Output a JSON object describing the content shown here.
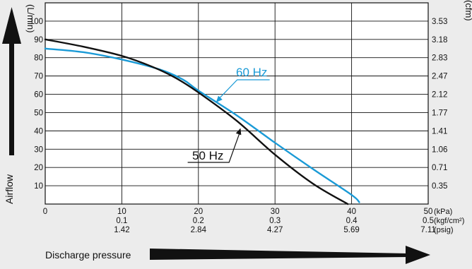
{
  "chart_data": {
    "type": "line",
    "y_axis_left": {
      "label": "Airflow",
      "unit": "(L/min)",
      "ticks": [
        10,
        20,
        30,
        40,
        50,
        60,
        70,
        80,
        90,
        100
      ],
      "ylim": [
        0,
        110
      ]
    },
    "y_axis_right": {
      "unit": "(cfm)",
      "ticks": [
        "0.35",
        "0.71",
        "1.06",
        "1.41",
        "1.77",
        "2.12",
        "2.47",
        "2.83",
        "3.18",
        "3.53"
      ]
    },
    "x_axis": {
      "label": "Discharge pressure",
      "xlim": [
        0,
        50
      ],
      "rows": [
        {
          "unit": "(kPa)",
          "ticks": [
            "0",
            "10",
            "20",
            "30",
            "40",
            "50"
          ]
        },
        {
          "unit": "(kgf/cm²)",
          "ticks": [
            "",
            "0.1",
            "0.2",
            "0.3",
            "0.4",
            "0.5"
          ]
        },
        {
          "unit": "(psig)",
          "ticks": [
            "",
            "1.42",
            "2.84",
            "4.27",
            "5.69",
            "7.11"
          ]
        }
      ]
    },
    "grid": true,
    "series": [
      {
        "name": "50 Hz",
        "color": "#111111",
        "x": [
          0,
          5,
          10,
          14,
          17,
          20,
          25,
          30,
          35,
          39.5
        ],
        "y": [
          90,
          86,
          81,
          75,
          69,
          61,
          45.5,
          27,
          11,
          0
        ]
      },
      {
        "name": "60 Hz",
        "color": "#1a9ad6",
        "x": [
          0,
          5,
          10,
          15,
          18,
          20,
          25,
          30,
          35,
          40,
          41
        ],
        "y": [
          85,
          83,
          79,
          73.5,
          68,
          62,
          48.5,
          33.5,
          19,
          5,
          1
        ]
      }
    ]
  }
}
